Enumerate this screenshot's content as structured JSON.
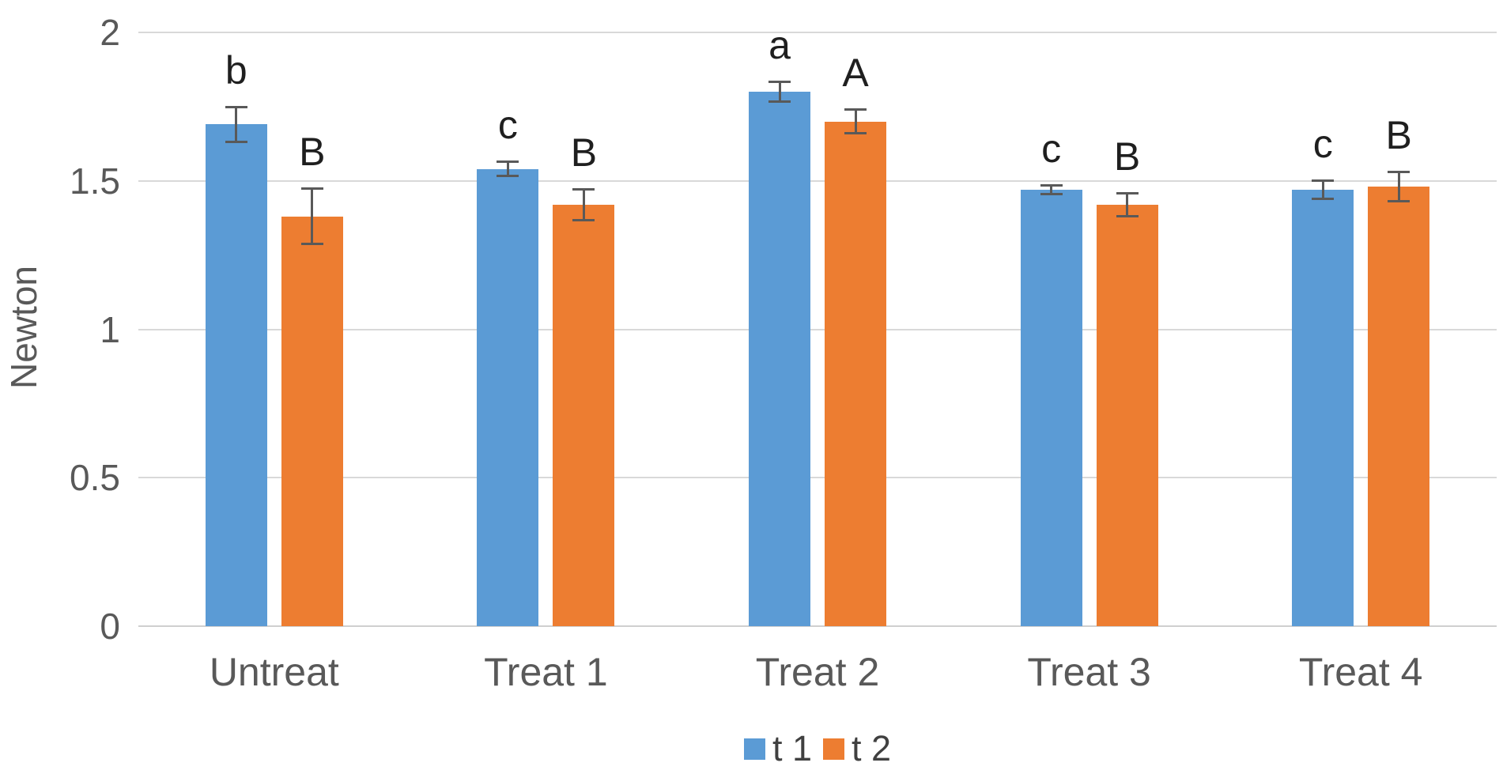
{
  "chart_data": {
    "type": "bar",
    "title": "",
    "xlabel": "",
    "ylabel": "Newton",
    "categories": [
      "Untreat",
      "Treat 1",
      "Treat 2",
      "Treat 3",
      "Treat 4"
    ],
    "series": [
      {
        "name": "t 1",
        "color": "#5B9BD5",
        "values": [
          1.69,
          1.54,
          1.8,
          1.47,
          1.47
        ],
        "errors": [
          0.06,
          0.025,
          0.035,
          0.015,
          0.033
        ],
        "letters": [
          "b",
          "c",
          "a",
          "c",
          "c"
        ]
      },
      {
        "name": "t 2",
        "color": "#ED7D31",
        "values": [
          1.38,
          1.42,
          1.7,
          1.42,
          1.48
        ],
        "errors": [
          0.095,
          0.053,
          0.042,
          0.04,
          0.05
        ],
        "letters": [
          "B",
          "B",
          "A",
          "B",
          "B"
        ]
      }
    ],
    "y_ticks": [
      0,
      0.5,
      1,
      1.5,
      2
    ],
    "y_tick_labels": [
      "0",
      "0.5",
      "1",
      "1.5",
      "2"
    ],
    "ylim": [
      0,
      2
    ],
    "grid": true,
    "error_bars": true,
    "legend_position": "bottom"
  },
  "colors": {
    "series_t1": "#5B9BD5",
    "series_t2": "#ED7D31",
    "gridline": "#d9d9d9",
    "axis_line": "#cfcfcf",
    "error_bar": "#595959",
    "tick_text": "#595959",
    "letter_text": "#1f1f1f",
    "legend_text": "#404040"
  }
}
